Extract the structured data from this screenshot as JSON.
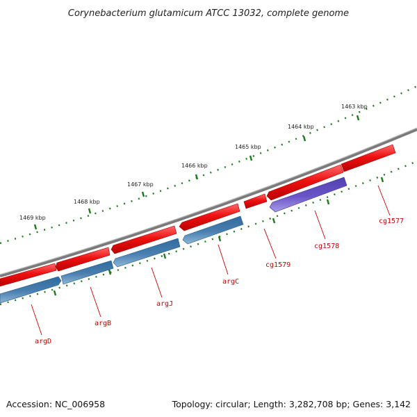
{
  "header": {
    "title": "Corynebacterium glutamicum ATCC 13032, complete genome"
  },
  "footer": {
    "accession": "Accession: NC_006958",
    "summary": "Topology: circular; Length: 3,282,708 bp; Genes: 3,142"
  },
  "colors": {
    "backbone": "#808080",
    "tick": "#1e7a1e",
    "forward_gene": "#ee1111",
    "reverse_gene": "#4a7fb0",
    "reverse_gene_alt": "#6a55c8",
    "label": "#cc0000"
  },
  "scale": {
    "labels": [
      "1463 kbp",
      "1464 kbp",
      "1465 kbp",
      "1466 kbp",
      "1467 kbp",
      "1468 kbp",
      "1469 kbp"
    ]
  },
  "genes": [
    {
      "name": "argD",
      "strand": "reverse"
    },
    {
      "name": "argB",
      "strand": "reverse"
    },
    {
      "name": "argJ",
      "strand": "reverse"
    },
    {
      "name": "argC",
      "strand": "reverse"
    },
    {
      "name": "cg1579",
      "strand": "forward"
    },
    {
      "name": "cg1578",
      "strand": "reverse"
    },
    {
      "name": "cg1577",
      "strand": "forward"
    }
  ]
}
